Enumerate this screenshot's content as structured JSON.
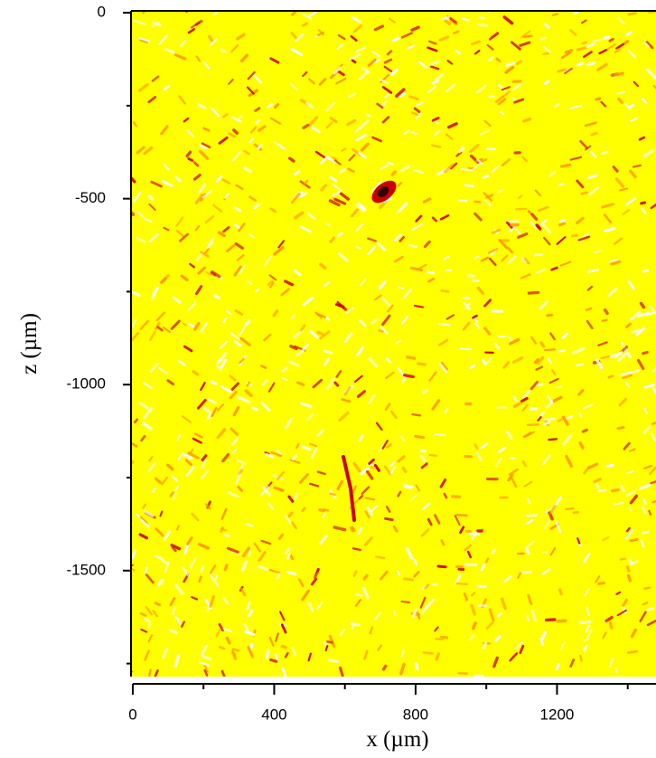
{
  "chart_data": {
    "type": "image",
    "x_label": "x (µm)",
    "y_label": "z (µm)",
    "xlim": [
      -5,
      1480
    ],
    "ylim": [
      -1785,
      5
    ],
    "xticks": [
      0,
      400,
      800,
      1200
    ],
    "xminorticks": [
      200,
      600,
      1000,
      1400
    ],
    "yticks": [
      0,
      -500,
      -1000,
      -1500
    ],
    "yminorticks": [
      -250,
      -750,
      -1250,
      -1750
    ],
    "colormap": [
      "#ffffff",
      "#ffff00",
      "#ff9900",
      "#cc0000",
      "#330000"
    ]
  }
}
